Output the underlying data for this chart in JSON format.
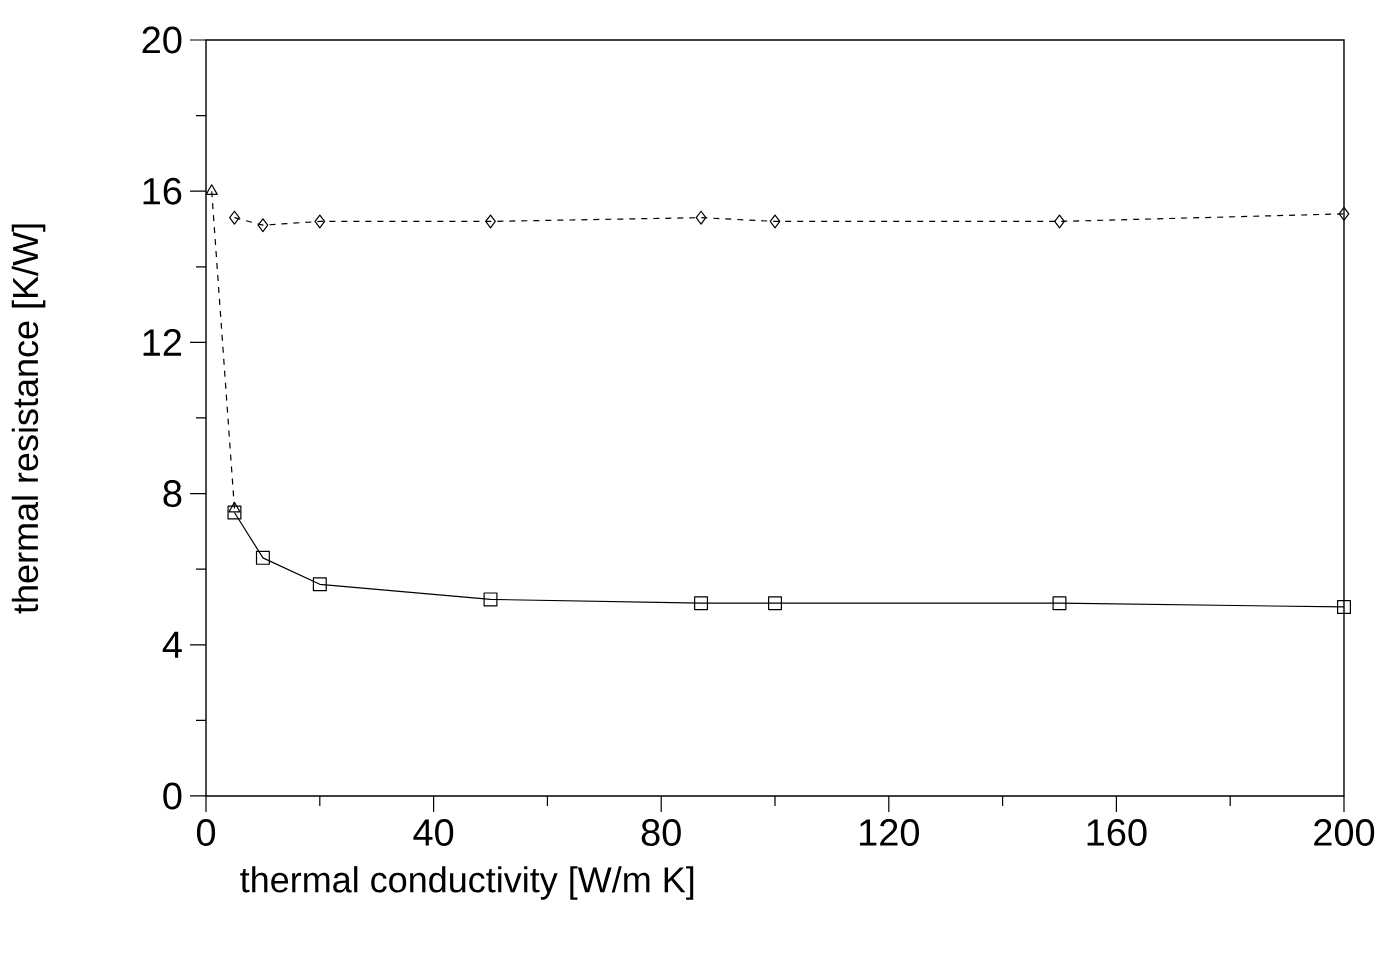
{
  "chart_data": {
    "type": "line",
    "xlabel": "thermal conductivity [W/m K]",
    "ylabel": "thermal resistance [K/W]",
    "xlim": [
      0,
      200
    ],
    "xticks": [
      0,
      40,
      80,
      120,
      160,
      200
    ],
    "ylim": [
      0,
      20
    ],
    "yticks": [
      0,
      4,
      8,
      12,
      16,
      20
    ],
    "grid": false,
    "series": [
      {
        "color": "#000000",
        "marker": "diamond",
        "line_style": "dashed",
        "x": [
          5,
          10,
          20,
          50,
          87,
          100,
          150,
          200
        ],
        "values": [
          15.3,
          15.1,
          15.2,
          15.2,
          15.3,
          15.2,
          15.2,
          15.4
        ]
      },
      {
        "color": "#000000",
        "marker": "triangle",
        "line_style": "dashed",
        "x": [
          1,
          5
        ],
        "values": [
          16,
          7.6
        ]
      },
      {
        "color": "#000000",
        "marker": "square",
        "line_style": "solid",
        "x": [
          5,
          10,
          20,
          50,
          87,
          100,
          150,
          200
        ],
        "values": [
          7.5,
          6.3,
          5.6,
          5.2,
          5.1,
          5.1,
          5.1,
          5.0
        ]
      }
    ]
  }
}
